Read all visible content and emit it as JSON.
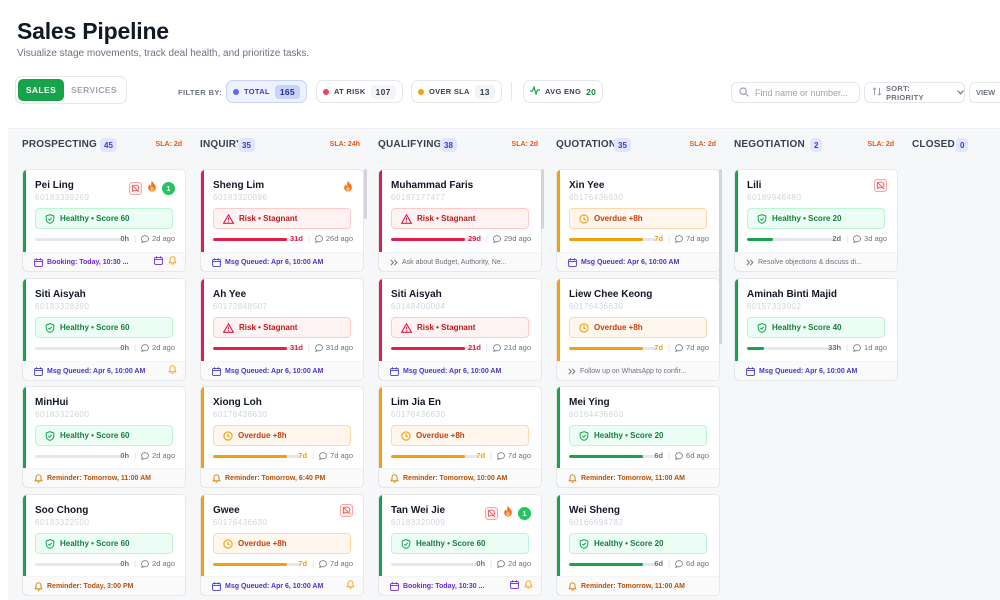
{
  "header": {
    "title": "Sales Pipeline",
    "subtitle": "Visualize stage movements, track deal health, and prioritize tasks."
  },
  "segment": {
    "sales": "SALES",
    "services": "SERVICES",
    "active": "sales"
  },
  "filters": {
    "label": "FILTER BY:",
    "total": {
      "label": "TOTAL",
      "count": "165",
      "color": "#6366f1"
    },
    "at_risk": {
      "label": "AT RISK",
      "count": "107",
      "color": "#f43f5e"
    },
    "over_sla": {
      "label": "OVER SLA",
      "count": "13",
      "color": "#f59e0b"
    },
    "avg_eng": {
      "label": "AVG ENG",
      "count": "20",
      "color": "#16a34a"
    }
  },
  "search": {
    "placeholder": "Find name or number..."
  },
  "sort": {
    "label": "SORT: PRIORITY"
  },
  "view": {
    "label": "VIEW"
  },
  "columns": [
    {
      "title": "PROSPECTING",
      "count": "45",
      "sla": "SLA: 2d"
    },
    {
      "title": "INQUIRY",
      "count": "35",
      "sla": "SLA: 24h"
    },
    {
      "title": "QUALIFYING",
      "count": "38",
      "sla": "SLA: 2d"
    },
    {
      "title": "QUOTATION",
      "count": "35",
      "sla": "SLA: 2d"
    },
    {
      "title": "NEGOTIATION",
      "count": "2",
      "sla": "SLA: 2d"
    },
    {
      "title": "CLOSED",
      "count": "0",
      "sla": ""
    }
  ],
  "cards": [
    [
      {
        "name": "Pei Ling",
        "phone": "60183339269",
        "status": "healthy",
        "status_label": "Healthy • Score 60",
        "progress": 0,
        "days": "0h",
        "last": "2d ago",
        "foot_type": "booking",
        "foot": "Booking: Today, 10:30 ...",
        "nomsg": true,
        "fire": true,
        "badge": "1"
      },
      {
        "name": "Siti Aisyah",
        "phone": "60183328390",
        "status": "healthy",
        "status_label": "Healthy • Score 60",
        "progress": 0,
        "days": "0h",
        "last": "2d ago",
        "foot_type": "msg",
        "foot": "Msg Queued: Apr 6, 10:00 AM"
      },
      {
        "name": "MinHui",
        "phone": "60183322600",
        "status": "healthy",
        "status_label": "Healthy • Score 60",
        "progress": 0,
        "days": "0h",
        "last": "2d ago",
        "foot_type": "reminder",
        "foot": "Reminder: Tomorrow,  11:00 AM"
      },
      {
        "name": "Soo Chong",
        "phone": "60183322500",
        "status": "healthy",
        "status_label": "Healthy • Score 60",
        "progress": 0,
        "days": "0h",
        "last": "2d ago",
        "foot_type": "reminder",
        "foot": "Reminder: Today, 3:00 PM"
      }
    ],
    [
      {
        "name": "Sheng Lim",
        "phone": "60183320896",
        "status": "risk",
        "status_label": "Risk • Stagnant",
        "progress": 0.85,
        "days": "31d",
        "last": "26d ago",
        "foot_type": "msg",
        "foot": "Msg Queued: Apr 6, 10:00 AM",
        "fire": true
      },
      {
        "name": "Ah Yee",
        "phone": "60172848507",
        "status": "risk",
        "status_label": "Risk • Stagnant",
        "progress": 0.85,
        "days": "31d",
        "last": "31d ago",
        "foot_type": "msg",
        "foot": "Msg Queued: Apr 6, 10:00 AM"
      },
      {
        "name": "Xiong Loh",
        "phone": "60176436630",
        "status": "overdue",
        "status_label": "Overdue +8h",
        "progress": 0.85,
        "days": "7d",
        "last": "7d ago",
        "foot_type": "reminder",
        "foot": "Reminder: Tomorrow, 6:40 PM"
      },
      {
        "name": "Gwee",
        "phone": "60176436630",
        "status": "overdue",
        "status_label": "Overdue +8h",
        "progress": 0.85,
        "days": "7d",
        "last": "7d ago",
        "foot_type": "msg",
        "foot": "Msg Queued: Apr 6, 10:00 AM",
        "nomsg": true
      }
    ],
    [
      {
        "name": "Muhammad Faris",
        "phone": "60187177477",
        "status": "risk",
        "status_label": "Risk • Stagnant",
        "progress": 0.85,
        "days": "29d",
        "last": "29d ago",
        "foot_type": "note",
        "foot": "Ask about Budget, Authority, Ne..."
      },
      {
        "name": "Siti Aisyah",
        "phone": "60148400004",
        "status": "risk",
        "status_label": "Risk • Stagnant",
        "progress": 0.85,
        "days": "21d",
        "last": "21d ago",
        "foot_type": "msg",
        "foot": "Msg Queued: Apr 6, 10:00 AM"
      },
      {
        "name": "Lim Jia En",
        "phone": "60176436630",
        "status": "overdue",
        "status_label": "Overdue +8h",
        "progress": 0.85,
        "days": "7d",
        "last": "7d ago",
        "foot_type": "reminder",
        "foot": "Reminder: Tomorrow,  10:00 AM"
      },
      {
        "name": "Tan Wei Jie",
        "phone": "60183320009",
        "status": "healthy",
        "status_label": "Healthy • Score 60",
        "progress": 0,
        "days": "0h",
        "last": "2d ago",
        "foot_type": "booking",
        "foot": "Booking: Today, 10:30 ...",
        "nomsg": true,
        "fire": true,
        "badge": "1"
      }
    ],
    [
      {
        "name": "Xin Yee",
        "phone": "60176436630",
        "status": "overdue",
        "status_label": "Overdue +8h",
        "progress": 0.85,
        "days": "7d",
        "last": "7d ago",
        "foot_type": "msg",
        "foot": "Msg Queued: Apr 6, 10:00 AM"
      },
      {
        "name": "Liew Chee Keong",
        "phone": "60176436630",
        "status": "overdue",
        "status_label": "Overdue +8h",
        "progress": 0.85,
        "days": "7d",
        "last": "7d ago",
        "foot_type": "note",
        "foot": "Follow up on WhatsApp to confir..."
      },
      {
        "name": "Mei Ying",
        "phone": "60164436600",
        "status": "healthy",
        "status_label": "Healthy • Score 20",
        "progress": 0.85,
        "days": "6d",
        "last": "6d ago",
        "foot_type": "reminder",
        "foot": "Reminder: Tomorrow,  11:00 AM"
      },
      {
        "name": "Wei Sheng",
        "phone": "60166694782",
        "status": "healthy",
        "status_label": "Healthy • Score 20",
        "progress": 0.85,
        "days": "6d",
        "last": "6d ago",
        "foot_type": "reminder",
        "foot": "Reminder: Tomorrow,  11:00 AM"
      }
    ],
    [
      {
        "name": "Lili",
        "phone": "60189946480",
        "status": "healthy",
        "status_label": "Healthy • Score 20",
        "progress": 0.3,
        "days": "2d",
        "last": "3d ago",
        "foot_type": "note",
        "foot": "Resolve objections & discuss di...",
        "nomsg": true
      },
      {
        "name": "Aminah Binti Majid",
        "phone": "60157333002",
        "status": "healthy",
        "status_label": "Healthy • Score 40",
        "progress": 0.2,
        "days": "33h",
        "last": "1d ago",
        "foot_type": "msg",
        "foot": "Msg Queued: Apr 6, 10:00 AM"
      }
    ],
    []
  ],
  "colors": {
    "healthy": "#16a34a",
    "risk": "#e11d48",
    "overdue": "#f59e0b",
    "brand": "#16a34a"
  }
}
